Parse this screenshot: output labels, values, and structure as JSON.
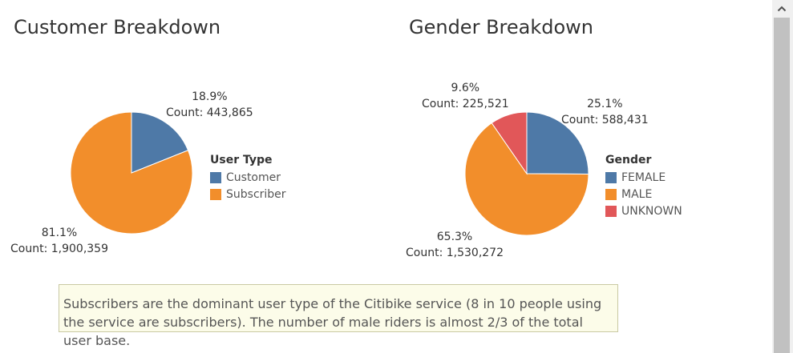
{
  "chart_data": [
    {
      "type": "pie",
      "title": "Customer Breakdown",
      "legend_title": "User Type",
      "legend_position": "right",
      "slices": [
        {
          "name": "Customer",
          "percent_label": "18.9%",
          "count_label": "Count: 443,865",
          "value": 443865,
          "color": "#4e79a7"
        },
        {
          "name": "Subscriber",
          "percent_label": "81.1%",
          "count_label": "Count: 1,900,359",
          "value": 1900359,
          "color": "#f28e2b"
        }
      ]
    },
    {
      "type": "pie",
      "title": "Gender Breakdown",
      "legend_title": "Gender",
      "legend_position": "right",
      "slices": [
        {
          "name": "FEMALE",
          "percent_label": "25.1%",
          "count_label": "Count: 588,431",
          "value": 588431,
          "color": "#4e79a7"
        },
        {
          "name": "MALE",
          "percent_label": "65.3%",
          "count_label": "Count: 1,530,272",
          "value": 1530272,
          "color": "#f28e2b"
        },
        {
          "name": "UNKNOWN",
          "percent_label": "9.6%",
          "count_label": "Count: 225,521",
          "value": 225521,
          "color": "#e15759"
        }
      ]
    }
  ],
  "annotation": {
    "text": "Subscribers are the dominant user type of the Citibike service (8 in 10 people using the service are subscribers). The number of male riders is almost 2/3 of the total user base."
  },
  "scrollbar": {
    "up_icon": "chevron-up-icon"
  }
}
